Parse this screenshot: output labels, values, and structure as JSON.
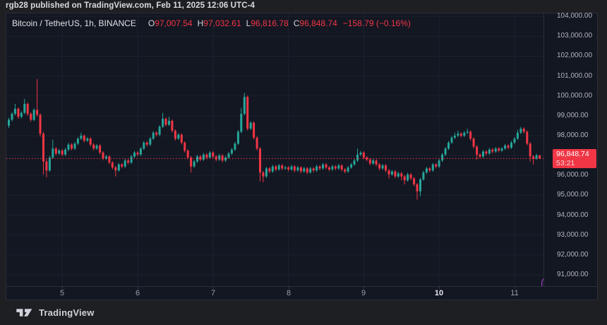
{
  "attribution": {
    "text": "rgb28 published on TradingView.com, Feb 11, 2025 12:06 UTC-4"
  },
  "legend": {
    "symbol": "Bitcoin / TetherUS, 1h, BINANCE",
    "items": [
      {
        "label": "O",
        "value": "97,007.54"
      },
      {
        "label": "H",
        "value": "97,032.61"
      },
      {
        "label": "L",
        "value": "96,816.78"
      },
      {
        "label": "C",
        "value": "96,848.74"
      }
    ],
    "change": "−158.79 (−0.16%)"
  },
  "price_badge": {
    "price": "96,848.74",
    "countdown": "53:21"
  },
  "footer": {
    "brand": "TradingView"
  },
  "colors": {
    "up": "#26a69a",
    "down": "#f23645",
    "badge_bg": "#f23645",
    "price_line": "#f23645",
    "chart_bg": "#131722",
    "grid": "#1c212e",
    "axis_text": "#b2b5be",
    "accent_purple": "#bb4be0"
  },
  "chart_data": {
    "type": "candlestick",
    "title": "Bitcoin / TetherUS, 1h, BINANCE",
    "exchange": "BINANCE",
    "interval": "1h",
    "start_time": "2025-02-04 07:00",
    "last_price": 96848.74,
    "price_range": [
      90430,
      104150
    ],
    "y_ticks": [
      {
        "value": 104000,
        "label": "104,000.00"
      },
      {
        "value": 103000,
        "label": "103,000.00"
      },
      {
        "value": 102000,
        "label": "102,000.00"
      },
      {
        "value": 101000,
        "label": "101,000.00"
      },
      {
        "value": 100000,
        "label": "100,000.00"
      },
      {
        "value": 99000,
        "label": "99,000.00"
      },
      {
        "value": 98000,
        "label": "98,000.00"
      },
      {
        "value": 97000,
        "label": "97,000.00"
      },
      {
        "value": 96000,
        "label": "96,000.00"
      },
      {
        "value": 95000,
        "label": "95,000.00"
      },
      {
        "value": 94000,
        "label": "94,000.00"
      },
      {
        "value": 93000,
        "label": "93,000.00"
      },
      {
        "value": 92000,
        "label": "92,000.00"
      },
      {
        "value": 91000,
        "label": "91,000.00"
      }
    ],
    "x_ticks": [
      {
        "label": "5",
        "hour": 17
      },
      {
        "label": "6",
        "hour": 41
      },
      {
        "label": "7",
        "hour": 65
      },
      {
        "label": "8",
        "hour": 89
      },
      {
        "label": "9",
        "hour": 113
      },
      {
        "label": "10",
        "hour": 137,
        "strong": true
      },
      {
        "label": "11",
        "hour": 161
      }
    ],
    "candles": [
      [
        98500,
        98900,
        98380,
        98800
      ],
      [
        98800,
        99180,
        98720,
        99100
      ],
      [
        99100,
        99600,
        99020,
        99350
      ],
      [
        99350,
        99420,
        98850,
        98950
      ],
      [
        98950,
        99230,
        98870,
        99150
      ],
      [
        99150,
        99850,
        99080,
        99600
      ],
      [
        99600,
        99680,
        99000,
        99100
      ],
      [
        99100,
        99180,
        98700,
        98800
      ],
      [
        98800,
        99380,
        98730,
        99300
      ],
      [
        99300,
        100850,
        98950,
        99050
      ],
      [
        99050,
        99120,
        97950,
        98100
      ],
      [
        98100,
        98180,
        96050,
        96700
      ],
      [
        96700,
        96820,
        95900,
        96250
      ],
      [
        96250,
        96980,
        96180,
        96900
      ],
      [
        96900,
        97800,
        96830,
        97350
      ],
      [
        97350,
        97430,
        97010,
        97100
      ],
      [
        97100,
        97330,
        97030,
        97250
      ],
      [
        97250,
        97330,
        96960,
        97050
      ],
      [
        97050,
        97380,
        96980,
        97300
      ],
      [
        97300,
        97630,
        97230,
        97550
      ],
      [
        97550,
        97620,
        97260,
        97350
      ],
      [
        97350,
        97680,
        97280,
        97600
      ],
      [
        97600,
        97930,
        97530,
        97850
      ],
      [
        97850,
        98150,
        97780,
        98000
      ],
      [
        98000,
        98070,
        97660,
        97750
      ],
      [
        97750,
        97930,
        97680,
        97850
      ],
      [
        97850,
        97920,
        97460,
        97550
      ],
      [
        97550,
        97620,
        97260,
        97350
      ],
      [
        97350,
        97580,
        97280,
        97500
      ],
      [
        97500,
        97570,
        97060,
        97150
      ],
      [
        97150,
        97220,
        96760,
        96850
      ],
      [
        96850,
        97030,
        96780,
        96950
      ],
      [
        96950,
        97020,
        96560,
        96650
      ],
      [
        96650,
        96720,
        96310,
        96400
      ],
      [
        96400,
        96470,
        95950,
        96250
      ],
      [
        96250,
        96630,
        96180,
        96550
      ],
      [
        96550,
        96620,
        96360,
        96450
      ],
      [
        96450,
        96830,
        96380,
        96750
      ],
      [
        96750,
        96820,
        96560,
        96650
      ],
      [
        96650,
        97030,
        96580,
        96950
      ],
      [
        96950,
        97230,
        96880,
        97150
      ],
      [
        97150,
        97220,
        96960,
        97050
      ],
      [
        97050,
        97430,
        96980,
        97350
      ],
      [
        97350,
        97730,
        97280,
        97650
      ],
      [
        97650,
        97720,
        97460,
        97550
      ],
      [
        97550,
        97930,
        97480,
        97850
      ],
      [
        97850,
        98230,
        97780,
        98150
      ],
      [
        98150,
        98220,
        97960,
        98050
      ],
      [
        98050,
        98530,
        97980,
        98450
      ],
      [
        98450,
        99150,
        98380,
        98850
      ],
      [
        98850,
        98920,
        98460,
        98550
      ],
      [
        98550,
        98950,
        98480,
        98750
      ],
      [
        98750,
        98820,
        98160,
        98250
      ],
      [
        98250,
        98320,
        97760,
        97850
      ],
      [
        97850,
        98130,
        97780,
        98050
      ],
      [
        98050,
        98120,
        97560,
        97650
      ],
      [
        97650,
        97720,
        97160,
        97250
      ],
      [
        97250,
        97320,
        96810,
        96900
      ],
      [
        96900,
        96970,
        96150,
        96450
      ],
      [
        96450,
        96780,
        96380,
        96700
      ],
      [
        96700,
        97030,
        96630,
        96950
      ],
      [
        96950,
        97020,
        96710,
        96800
      ],
      [
        96800,
        97130,
        96730,
        97050
      ],
      [
        97050,
        97120,
        96810,
        96900
      ],
      [
        96900,
        97230,
        96830,
        97150
      ],
      [
        97150,
        97220,
        96860,
        96950
      ],
      [
        96950,
        97020,
        96710,
        96800
      ],
      [
        96800,
        97080,
        96730,
        97000
      ],
      [
        97000,
        97070,
        96660,
        96750
      ],
      [
        96750,
        96980,
        96680,
        96900
      ],
      [
        96900,
        97180,
        96830,
        97100
      ],
      [
        97100,
        97380,
        97030,
        97300
      ],
      [
        97300,
        97680,
        97230,
        97600
      ],
      [
        97600,
        98280,
        97530,
        98200
      ],
      [
        98200,
        99400,
        98130,
        99100
      ],
      [
        99100,
        100150,
        99030,
        99950
      ],
      [
        99950,
        100020,
        98260,
        98350
      ],
      [
        98350,
        98730,
        98280,
        98650
      ],
      [
        98650,
        98720,
        97810,
        97900
      ],
      [
        97900,
        97970,
        97260,
        97350
      ],
      [
        97350,
        97420,
        95700,
        96150
      ],
      [
        96150,
        96220,
        95650,
        95950
      ],
      [
        95950,
        96430,
        95880,
        96350
      ],
      [
        96350,
        96420,
        96110,
        96200
      ],
      [
        96200,
        96530,
        96130,
        96450
      ],
      [
        96450,
        96520,
        96210,
        96300
      ],
      [
        96300,
        96580,
        96230,
        96500
      ],
      [
        96500,
        96570,
        96260,
        96350
      ],
      [
        96350,
        96480,
        96280,
        96400
      ],
      [
        96400,
        96470,
        96210,
        96300
      ],
      [
        96300,
        96530,
        96230,
        96450
      ],
      [
        96450,
        96520,
        96160,
        96250
      ],
      [
        96250,
        96480,
        96180,
        96400
      ],
      [
        96400,
        96470,
        96110,
        96200
      ],
      [
        96200,
        96430,
        96130,
        96350
      ],
      [
        96350,
        96420,
        96060,
        96150
      ],
      [
        96150,
        96430,
        96080,
        96350
      ],
      [
        96350,
        96420,
        96160,
        96250
      ],
      [
        96250,
        96530,
        96180,
        96450
      ],
      [
        96450,
        96520,
        96260,
        96350
      ],
      [
        96350,
        96630,
        96280,
        96550
      ],
      [
        96550,
        96620,
        96310,
        96400
      ],
      [
        96400,
        96470,
        96210,
        96300
      ],
      [
        96300,
        96530,
        96230,
        96450
      ],
      [
        96450,
        96520,
        96260,
        96350
      ],
      [
        96350,
        96580,
        96280,
        96500
      ],
      [
        96500,
        96570,
        96210,
        96300
      ],
      [
        96300,
        96370,
        96110,
        96200
      ],
      [
        96200,
        96480,
        96130,
        96400
      ],
      [
        96400,
        96630,
        96330,
        96550
      ],
      [
        96550,
        96830,
        96480,
        96750
      ],
      [
        96750,
        97350,
        96680,
        97050
      ],
      [
        97050,
        97230,
        96980,
        97150
      ],
      [
        97150,
        97220,
        96810,
        96900
      ],
      [
        96900,
        96970,
        96710,
        96800
      ],
      [
        96800,
        96870,
        96510,
        96600
      ],
      [
        96600,
        96830,
        96530,
        96750
      ],
      [
        96750,
        96820,
        96460,
        96550
      ],
      [
        96550,
        96620,
        96260,
        96350
      ],
      [
        96350,
        96580,
        96280,
        96500
      ],
      [
        96500,
        96570,
        96160,
        96250
      ],
      [
        96250,
        96320,
        95850,
        96050
      ],
      [
        96050,
        96280,
        95980,
        96200
      ],
      [
        96200,
        96270,
        95860,
        95950
      ],
      [
        95950,
        96180,
        95880,
        96100
      ],
      [
        96100,
        96170,
        95750,
        95950
      ],
      [
        95950,
        96020,
        95550,
        95750
      ],
      [
        95750,
        96130,
        95680,
        96050
      ],
      [
        96050,
        96120,
        95760,
        95850
      ],
      [
        95850,
        95920,
        95460,
        95550
      ],
      [
        95550,
        95620,
        94780,
        95200
      ],
      [
        95200,
        95880,
        94950,
        95800
      ],
      [
        95800,
        96230,
        95730,
        96150
      ],
      [
        96150,
        96430,
        96080,
        96350
      ],
      [
        96350,
        96420,
        96160,
        96250
      ],
      [
        96250,
        96630,
        96180,
        96550
      ],
      [
        96550,
        96620,
        96360,
        96450
      ],
      [
        96450,
        96830,
        96380,
        96750
      ],
      [
        96750,
        97130,
        96680,
        97050
      ],
      [
        97050,
        97430,
        96980,
        97350
      ],
      [
        97350,
        97730,
        97280,
        97650
      ],
      [
        97650,
        97980,
        97580,
        97900
      ],
      [
        97900,
        98150,
        97830,
        98000
      ],
      [
        98000,
        98250,
        97930,
        98100
      ],
      [
        98100,
        98170,
        97910,
        98000
      ],
      [
        98000,
        98230,
        97930,
        98150
      ],
      [
        98150,
        98350,
        98080,
        98200
      ],
      [
        98200,
        98270,
        97760,
        97850
      ],
      [
        97850,
        97920,
        97360,
        97450
      ],
      [
        97450,
        97520,
        96800,
        97050
      ],
      [
        97050,
        97120,
        96860,
        96950
      ],
      [
        96950,
        97280,
        96880,
        97200
      ],
      [
        97200,
        97270,
        97010,
        97100
      ],
      [
        97100,
        97380,
        97030,
        97300
      ],
      [
        97300,
        97370,
        97110,
        97200
      ],
      [
        97200,
        97430,
        97130,
        97350
      ],
      [
        97350,
        97420,
        97160,
        97250
      ],
      [
        97250,
        97430,
        97180,
        97350
      ],
      [
        97350,
        97580,
        97280,
        97500
      ],
      [
        97500,
        97570,
        97310,
        97400
      ],
      [
        97400,
        97730,
        97330,
        97650
      ],
      [
        97650,
        97930,
        97580,
        97850
      ],
      [
        97850,
        98300,
        97780,
        98150
      ],
      [
        98150,
        98450,
        98080,
        98350
      ],
      [
        98350,
        98420,
        98110,
        98200
      ],
      [
        98200,
        98270,
        97510,
        97600
      ],
      [
        97600,
        97670,
        96700,
        96950
      ],
      [
        96950,
        97020,
        96550,
        96850
      ],
      [
        96850,
        97090,
        96780,
        97007
      ],
      [
        97007.54,
        97032.61,
        96816.78,
        96848.74
      ]
    ]
  }
}
